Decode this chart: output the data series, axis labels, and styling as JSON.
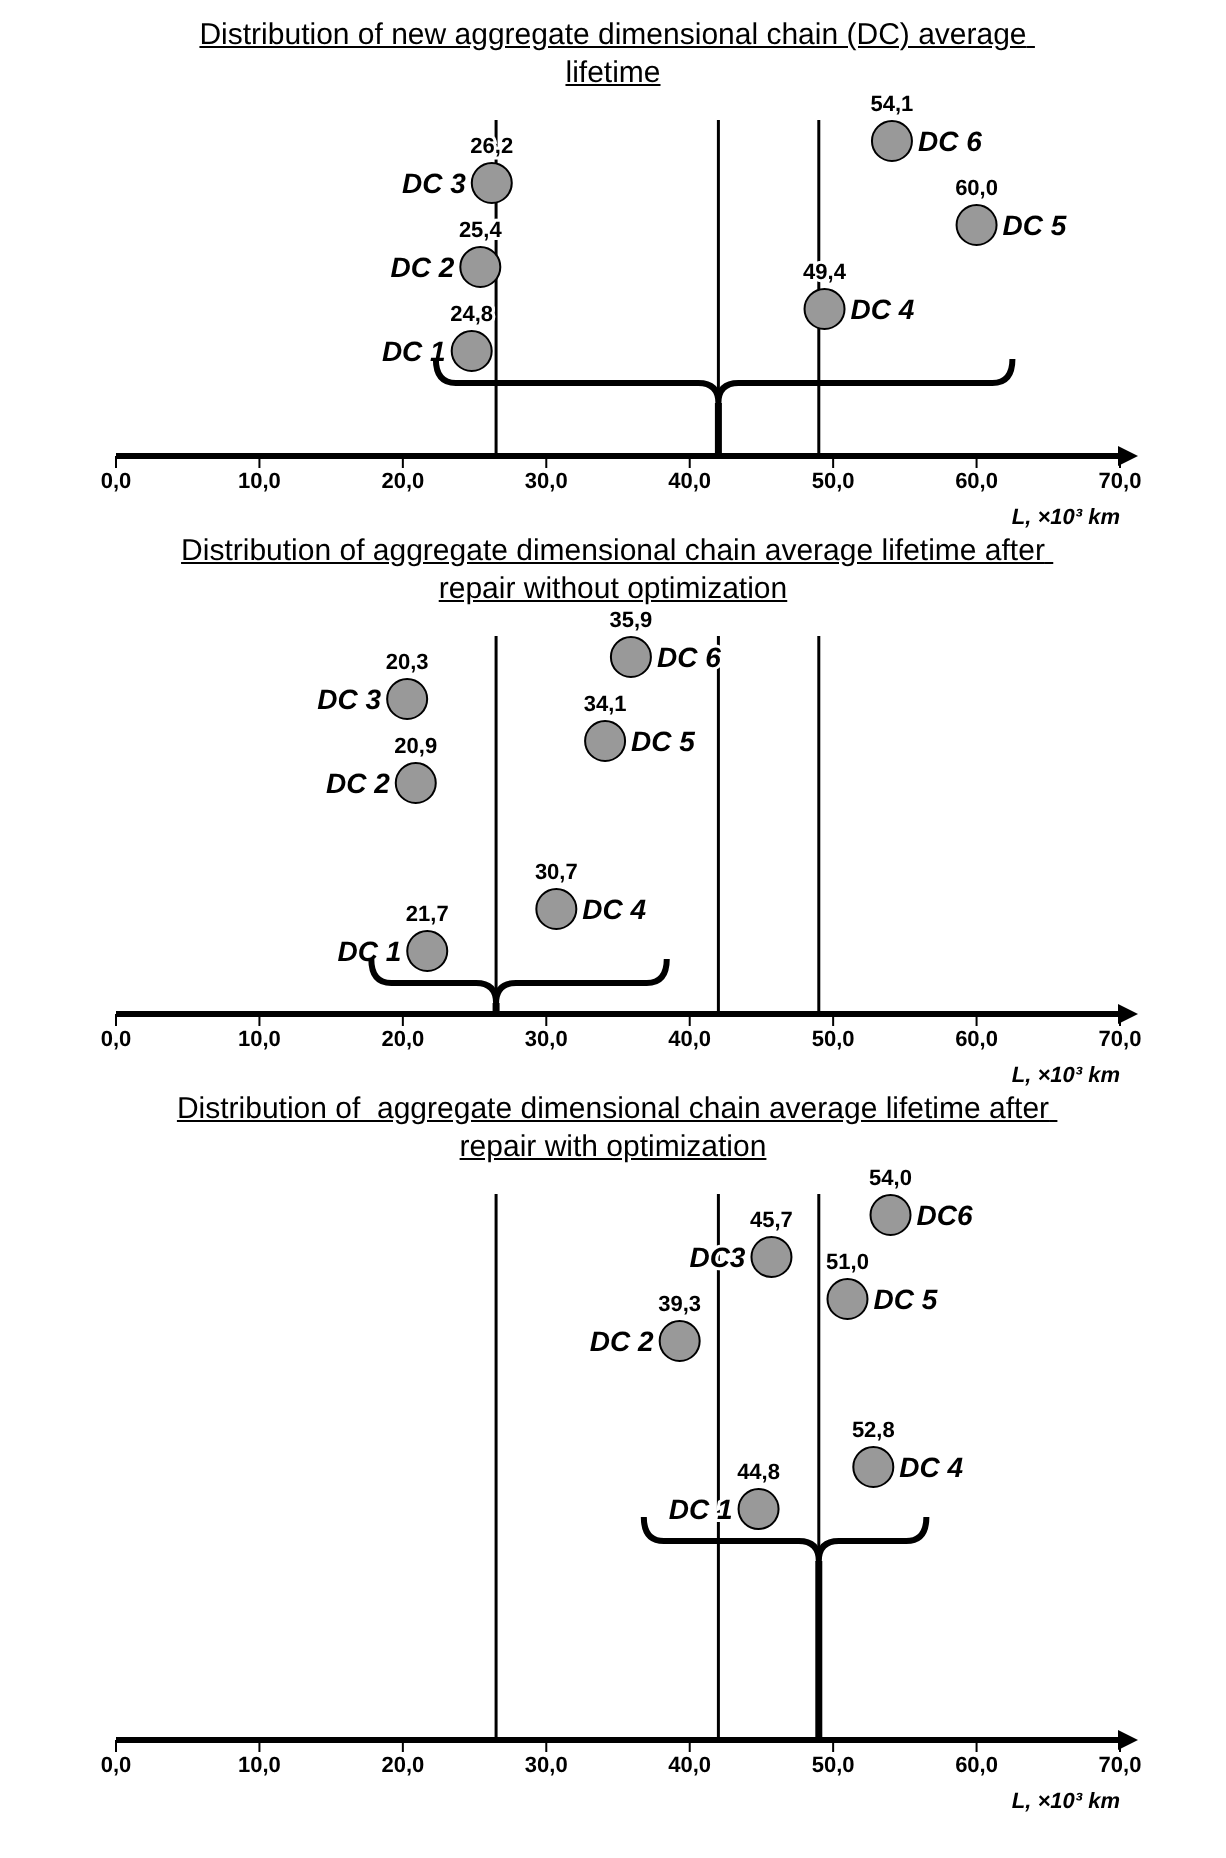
{
  "chart_data": [
    {
      "type": "scatter",
      "orientation": "horizontal",
      "title": "Distribution of new aggregate dimensional chain (DC) average lifetime",
      "xlabel": "L, ×10³ km",
      "xlim": [
        0,
        70
      ],
      "xticks": [
        {
          "value": 0,
          "label": "0,0"
        },
        {
          "value": 10,
          "label": "10,0"
        },
        {
          "value": 20,
          "label": "20,0"
        },
        {
          "value": 30,
          "label": "30,0"
        },
        {
          "value": 40,
          "label": "40,0"
        },
        {
          "value": 50,
          "label": "50,0"
        },
        {
          "value": 60,
          "label": "60,0"
        },
        {
          "value": 70,
          "label": "70,0"
        }
      ],
      "marker": "circle",
      "data_labels": true,
      "categories": [
        null,
        null,
        null,
        null,
        null,
        null,
        null,
        null
      ],
      "ref_lines": [
        {
          "axis": "x",
          "value": 26.5,
          "color": "#000000"
        },
        {
          "axis": "x",
          "value": 42,
          "color": "#000000"
        },
        {
          "axis": "x",
          "value": 49,
          "color": "#000000"
        }
      ],
      "series": [
        {
          "name": "DC 1",
          "color": "#999999",
          "values": [
            null,
            null,
            null,
            null,
            null,
            24.8,
            null,
            null
          ],
          "value_labels": [
            null,
            null,
            null,
            null,
            null,
            "24,8",
            null,
            null
          ]
        },
        {
          "name": "DC 2",
          "color": "#999999",
          "values": [
            null,
            null,
            null,
            25.4,
            null,
            null,
            null,
            null
          ],
          "value_labels": [
            null,
            null,
            null,
            "25,4",
            null,
            null,
            null,
            null
          ]
        },
        {
          "name": "DC 3",
          "color": "#999999",
          "values": [
            null,
            26.2,
            null,
            null,
            null,
            null,
            null,
            null
          ],
          "value_labels": [
            null,
            "26,2",
            null,
            null,
            null,
            null,
            null,
            null
          ]
        },
        {
          "name": "DC 4",
          "color": "#999999",
          "values": [
            null,
            null,
            null,
            null,
            49.4,
            null,
            null,
            null
          ],
          "value_labels": [
            null,
            null,
            null,
            null,
            "49,4",
            null,
            null,
            null
          ]
        },
        {
          "name": "DC 5",
          "color": "#999999",
          "values": [
            null,
            null,
            60.0,
            null,
            null,
            null,
            null,
            null
          ],
          "value_labels": [
            null,
            null,
            "60,0",
            null,
            null,
            null,
            null,
            null
          ]
        },
        {
          "name": "DC 6",
          "color": "#999999",
          "values": [
            54.1,
            null,
            null,
            null,
            null,
            null,
            null,
            null
          ],
          "value_labels": [
            "54,1",
            null,
            null,
            null,
            null,
            null,
            null,
            null
          ]
        }
      ]
    },
    {
      "type": "scatter",
      "orientation": "horizontal",
      "title": "Distribution of aggregate dimensional chain average lifetime after repair without optimization",
      "xlabel": "L, ×10³ km",
      "xlim": [
        0,
        70
      ],
      "xticks": [
        {
          "value": 0,
          "label": "0,0"
        },
        {
          "value": 10,
          "label": "10,0"
        },
        {
          "value": 20,
          "label": "20,0"
        },
        {
          "value": 30,
          "label": "30,0"
        },
        {
          "value": 40,
          "label": "40,0"
        },
        {
          "value": 50,
          "label": "50,0"
        },
        {
          "value": 60,
          "label": "60,0"
        },
        {
          "value": 70,
          "label": "70,0"
        }
      ],
      "marker": "circle",
      "data_labels": true,
      "categories": [
        null,
        null,
        null,
        null,
        null,
        null,
        null,
        null,
        null
      ],
      "ref_lines": [
        {
          "axis": "x",
          "value": 26.5,
          "color": "#000000"
        },
        {
          "axis": "x",
          "value": 42,
          "color": "#000000"
        },
        {
          "axis": "x",
          "value": 49,
          "color": "#000000"
        }
      ],
      "series": [
        {
          "name": "DC 1",
          "color": "#999999",
          "values": [
            null,
            null,
            null,
            null,
            null,
            null,
            null,
            21.7,
            null
          ],
          "value_labels": [
            null,
            null,
            null,
            null,
            null,
            null,
            null,
            "21,7",
            null
          ]
        },
        {
          "name": "DC 2",
          "color": "#999999",
          "values": [
            null,
            null,
            null,
            20.9,
            null,
            null,
            null,
            null,
            null
          ],
          "value_labels": [
            null,
            null,
            null,
            "20,9",
            null,
            null,
            null,
            null,
            null
          ]
        },
        {
          "name": "DC 3",
          "color": "#999999",
          "values": [
            null,
            20.3,
            null,
            null,
            null,
            null,
            null,
            null,
            null
          ],
          "value_labels": [
            null,
            "20,3",
            null,
            null,
            null,
            null,
            null,
            null,
            null
          ]
        },
        {
          "name": "DC 4",
          "color": "#999999",
          "values": [
            null,
            null,
            null,
            null,
            null,
            null,
            30.7,
            null,
            null
          ],
          "value_labels": [
            null,
            null,
            null,
            null,
            null,
            null,
            "30,7",
            null,
            null
          ]
        },
        {
          "name": "DC 5",
          "color": "#999999",
          "values": [
            null,
            null,
            34.1,
            null,
            null,
            null,
            null,
            null,
            null
          ],
          "value_labels": [
            null,
            null,
            "34,1",
            null,
            null,
            null,
            null,
            null,
            null
          ]
        },
        {
          "name": "DC 6",
          "color": "#999999",
          "values": [
            35.9,
            null,
            null,
            null,
            null,
            null,
            null,
            null,
            null
          ],
          "value_labels": [
            "35,9",
            null,
            null,
            null,
            null,
            null,
            null,
            null,
            null
          ]
        }
      ]
    },
    {
      "type": "scatter",
      "orientation": "horizontal",
      "title": "Distribution of  aggregate dimensional chain average lifetime after repair with optimization",
      "xlabel": "L, ×10³ km",
      "xlim": [
        0,
        70
      ],
      "xticks": [
        {
          "value": 0,
          "label": "0,0"
        },
        {
          "value": 10,
          "label": "10,0"
        },
        {
          "value": 20,
          "label": "20,0"
        },
        {
          "value": 30,
          "label": "30,0"
        },
        {
          "value": 40,
          "label": "40,0"
        },
        {
          "value": 50,
          "label": "50,0"
        },
        {
          "value": 60,
          "label": "60,0"
        },
        {
          "value": 70,
          "label": "70,0"
        }
      ],
      "marker": "circle",
      "data_labels": true,
      "categories": [
        null,
        null,
        null,
        null,
        null,
        null,
        null,
        null,
        null,
        null,
        null,
        null,
        null
      ],
      "ref_lines": [
        {
          "axis": "x",
          "value": 26.5,
          "color": "#000000"
        },
        {
          "axis": "x",
          "value": 42,
          "color": "#000000"
        },
        {
          "axis": "x",
          "value": 49,
          "color": "#000000"
        }
      ],
      "series": [
        {
          "name": "DC 1",
          "color": "#999999",
          "values": [
            null,
            null,
            null,
            null,
            null,
            null,
            null,
            44.8,
            null,
            null,
            null,
            null,
            null
          ],
          "value_labels": [
            null,
            null,
            null,
            null,
            null,
            null,
            null,
            "44,8",
            null,
            null,
            null,
            null,
            null
          ]
        },
        {
          "name": "DC 2",
          "color": "#999999",
          "values": [
            null,
            null,
            null,
            39.3,
            null,
            null,
            null,
            null,
            null,
            null,
            null,
            null,
            null
          ],
          "value_labels": [
            null,
            null,
            null,
            "39,3",
            null,
            null,
            null,
            null,
            null,
            null,
            null,
            null,
            null
          ]
        },
        {
          "name": "DC3",
          "color": "#999999",
          "values": [
            null,
            45.7,
            null,
            null,
            null,
            null,
            null,
            null,
            null,
            null,
            null,
            null,
            null
          ],
          "value_labels": [
            null,
            "45,7",
            null,
            null,
            null,
            null,
            null,
            null,
            null,
            null,
            null,
            null,
            null
          ]
        },
        {
          "name": "DC 4",
          "color": "#999999",
          "values": [
            null,
            null,
            null,
            null,
            null,
            null,
            52.8,
            null,
            null,
            null,
            null,
            null,
            null
          ],
          "value_labels": [
            null,
            null,
            null,
            null,
            null,
            null,
            "52,8",
            null,
            null,
            null,
            null,
            null,
            null
          ]
        },
        {
          "name": "DC 5",
          "color": "#999999",
          "values": [
            null,
            null,
            51.0,
            null,
            null,
            null,
            null,
            null,
            null,
            null,
            null,
            null,
            null
          ],
          "value_labels": [
            null,
            null,
            "51,0",
            null,
            null,
            null,
            null,
            null,
            null,
            null,
            null,
            null,
            null
          ]
        },
        {
          "name": "DC6",
          "color": "#999999",
          "values": [
            54.0,
            null,
            null,
            null,
            null,
            null,
            null,
            null,
            null,
            null,
            null,
            null,
            null
          ],
          "value_labels": [
            "54,0",
            null,
            null,
            null,
            null,
            null,
            null,
            null,
            null,
            null,
            null,
            null,
            null
          ]
        }
      ]
    }
  ]
}
